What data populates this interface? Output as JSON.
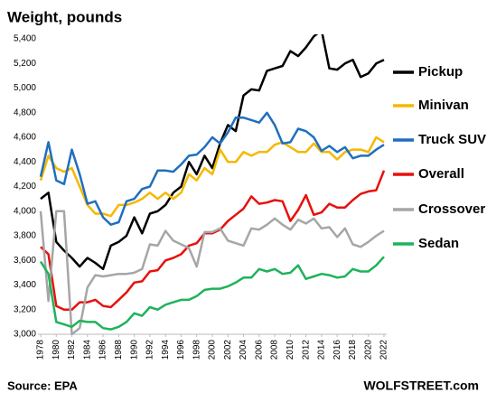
{
  "chart_data": {
    "type": "line",
    "title": "Weight, pounds",
    "source": "Source: EPA",
    "credit": "WOLFSTREET.com",
    "x": [
      1978,
      1979,
      1980,
      1981,
      1982,
      1983,
      1984,
      1985,
      1986,
      1987,
      1988,
      1989,
      1990,
      1991,
      1992,
      1993,
      1994,
      1995,
      1996,
      1997,
      1998,
      1999,
      2000,
      2001,
      2002,
      2003,
      2004,
      2005,
      2006,
      2007,
      2008,
      2009,
      2010,
      2011,
      2012,
      2013,
      2014,
      2015,
      2016,
      2017,
      2018,
      2019,
      2020,
      2021,
      2022
    ],
    "xlim": [
      1978,
      2022
    ],
    "xticks": [
      1978,
      1980,
      1982,
      1984,
      1986,
      1988,
      1990,
      1992,
      1994,
      1996,
      1998,
      2000,
      2002,
      2004,
      2006,
      2008,
      2010,
      2012,
      2014,
      2016,
      2018,
      2020,
      2022
    ],
    "ylim": [
      3000,
      5400
    ],
    "yticks": [
      {
        "value": 3000,
        "label": "3,000"
      },
      {
        "value": 3200,
        "label": "3,200"
      },
      {
        "value": 3400,
        "label": "3,400"
      },
      {
        "value": 3600,
        "label": "3,600"
      },
      {
        "value": 3800,
        "label": "3,800"
      },
      {
        "value": 4000,
        "label": "4,000"
      },
      {
        "value": 4200,
        "label": "4,200"
      },
      {
        "value": 4400,
        "label": "4,400"
      },
      {
        "value": 4600,
        "label": "4,600"
      },
      {
        "value": 4800,
        "label": "4,800"
      },
      {
        "value": 5000,
        "label": "5,000"
      },
      {
        "value": 5200,
        "label": "5,200"
      },
      {
        "value": 5400,
        "label": "5,400"
      }
    ],
    "grid": false,
    "legend": "right",
    "series": [
      {
        "name": "Pickup",
        "color": "#000000",
        "values": [
          4100,
          4150,
          3750,
          3680,
          3620,
          3550,
          3620,
          3580,
          3530,
          3720,
          3750,
          3800,
          3950,
          3820,
          3980,
          4000,
          4050,
          4150,
          4200,
          4400,
          4300,
          4450,
          4350,
          4550,
          4700,
          4650,
          4940,
          4990,
          4980,
          5140,
          5160,
          5180,
          5300,
          5260,
          5330,
          5420,
          5470,
          5160,
          5150,
          5200,
          5230,
          5090,
          5120,
          5200,
          5230
        ]
      },
      {
        "name": "Minivan",
        "color": "#f5b800",
        "values": [
          4250,
          4450,
          4350,
          4320,
          4350,
          4200,
          4050,
          3980,
          3980,
          3960,
          4050,
          4050,
          4070,
          4100,
          4150,
          4100,
          4150,
          4100,
          4150,
          4300,
          4250,
          4350,
          4300,
          4500,
          4400,
          4400,
          4480,
          4450,
          4480,
          4480,
          4540,
          4560,
          4520,
          4480,
          4480,
          4550,
          4480,
          4480,
          4420,
          4480,
          4500,
          4500,
          4480,
          4600,
          4560
        ]
      },
      {
        "name": "Truck SUV",
        "color": "#1f6fbf",
        "values": [
          4280,
          4560,
          4250,
          4220,
          4500,
          4300,
          4060,
          4080,
          3950,
          3890,
          3910,
          4080,
          4100,
          4180,
          4200,
          4330,
          4330,
          4320,
          4380,
          4450,
          4460,
          4520,
          4600,
          4550,
          4640,
          4760,
          4760,
          4740,
          4720,
          4800,
          4700,
          4550,
          4560,
          4670,
          4650,
          4600,
          4490,
          4530,
          4480,
          4520,
          4430,
          4450,
          4450,
          4500,
          4540
        ]
      },
      {
        "name": "Overall",
        "color": "#e8100c",
        "values": [
          3710,
          3650,
          3230,
          3200,
          3200,
          3260,
          3260,
          3280,
          3230,
          3220,
          3280,
          3340,
          3420,
          3430,
          3510,
          3520,
          3600,
          3620,
          3650,
          3720,
          3740,
          3820,
          3820,
          3850,
          3920,
          3970,
          4020,
          4120,
          4060,
          4070,
          4090,
          4080,
          3920,
          4010,
          4130,
          3970,
          3990,
          4060,
          4030,
          4030,
          4090,
          4140,
          4160,
          4170,
          4330
        ]
      },
      {
        "name": "Crossover",
        "color": "#a6a6a6",
        "values": [
          4000,
          3270,
          4000,
          4000,
          3000,
          3050,
          3380,
          3480,
          3470,
          3480,
          3490,
          3490,
          3500,
          3530,
          3730,
          3720,
          3840,
          3760,
          3730,
          3700,
          3550,
          3830,
          3830,
          3860,
          3760,
          3740,
          3720,
          3860,
          3850,
          3890,
          3940,
          3890,
          3850,
          3930,
          3900,
          3940,
          3860,
          3870,
          3790,
          3860,
          3730,
          3710,
          3750,
          3800,
          3840
        ]
      },
      {
        "name": "Sedan",
        "color": "#1db35a",
        "values": [
          3590,
          3490,
          3100,
          3080,
          3060,
          3110,
          3100,
          3100,
          3050,
          3040,
          3060,
          3100,
          3170,
          3150,
          3220,
          3200,
          3240,
          3260,
          3280,
          3280,
          3310,
          3360,
          3370,
          3370,
          3390,
          3420,
          3460,
          3460,
          3530,
          3510,
          3530,
          3490,
          3500,
          3560,
          3450,
          3470,
          3490,
          3480,
          3460,
          3470,
          3530,
          3510,
          3510,
          3560,
          3630
        ]
      }
    ]
  }
}
